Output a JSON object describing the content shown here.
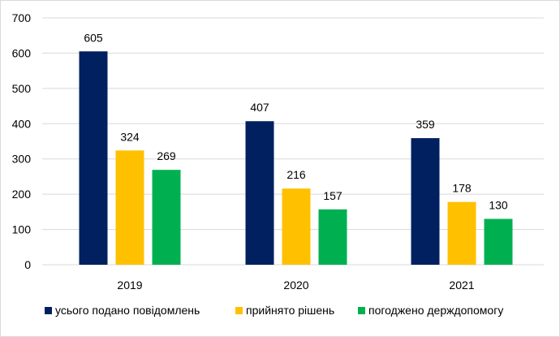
{
  "chart_data": {
    "type": "bar",
    "title": "",
    "xlabel": "",
    "ylabel": "",
    "categories": [
      "2019",
      "2020",
      "2021"
    ],
    "ylim": [
      0,
      700
    ],
    "yticks": [
      0,
      100,
      200,
      300,
      400,
      500,
      600,
      700
    ],
    "grid": true,
    "legend_position": "bottom",
    "series": [
      {
        "name": "усього подано повідомлень",
        "values": [
          605,
          407,
          359
        ],
        "color": "#002060"
      },
      {
        "name": "прийнято рішень",
        "values": [
          324,
          216,
          178
        ],
        "color": "#FFC000"
      },
      {
        "name": "погоджено держдопомогу",
        "values": [
          269,
          157,
          130
        ],
        "color": "#00B050"
      }
    ]
  }
}
